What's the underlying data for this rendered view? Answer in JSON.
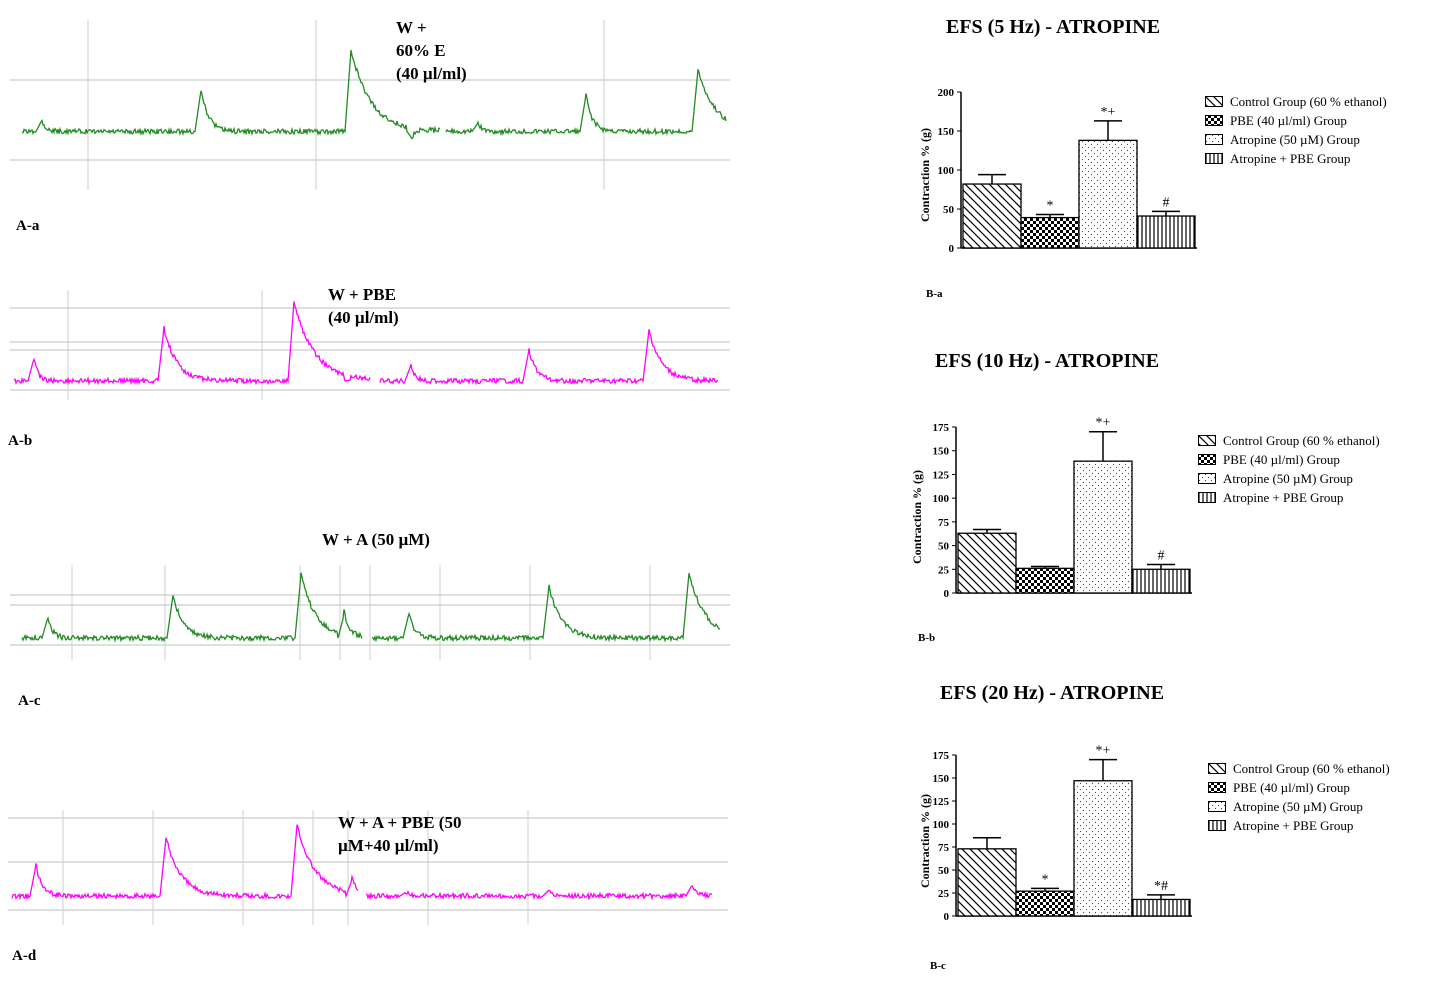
{
  "traces": [
    {
      "label": "A-a",
      "title_lines": [
        "W +",
        "60% E",
        "(40 µl/ml)"
      ],
      "color": "#228B22"
    },
    {
      "label": "A-b",
      "title_lines": [
        "W + PBE",
        "(40 µl/ml)"
      ],
      "color": "#FF00FF"
    },
    {
      "label": "A-c",
      "title_lines": [
        "W + A (50 µM)"
      ],
      "color": "#228B22"
    },
    {
      "label": "A-d",
      "title_lines": [
        "W + A + PBE (50",
        "µM+40 µl/ml)"
      ],
      "color": "#FF00FF"
    }
  ],
  "chart_data": [
    {
      "type": "bar",
      "panel_label": "B-a",
      "title": "EFS (5 Hz) - ATROPINE",
      "ylabel": "Contraction % (g)",
      "ylim": [
        0,
        200
      ],
      "yticks": [
        "0",
        "50",
        "100",
        "150",
        "200"
      ],
      "categories": [
        "Control Group (60 % ethanol)",
        "PBE (40 µl/ml) Group",
        "Atropine (50 µM) Group",
        "Atropine + PBE Group"
      ],
      "values": [
        82,
        39,
        138,
        41
      ],
      "errors": [
        12,
        4,
        25,
        6
      ],
      "annotations": [
        "",
        "*",
        "*+",
        "#"
      ]
    },
    {
      "type": "bar",
      "panel_label": "B-b",
      "title": "EFS (10 Hz) - ATROPINE",
      "ylabel": "Contraction % (g)",
      "ylim": [
        0,
        175
      ],
      "yticks": [
        "0",
        "25",
        "50",
        "75",
        "100",
        "125",
        "150",
        "175"
      ],
      "categories": [
        "Control Group (60 % ethanol)",
        "PBE (40 µl/ml) Group",
        "Atropine (50 µM) Group",
        "Atropine + PBE Group"
      ],
      "values": [
        63,
        26,
        139,
        25
      ],
      "errors": [
        4,
        2,
        31,
        5
      ],
      "annotations": [
        "",
        "",
        "*+",
        "#"
      ]
    },
    {
      "type": "bar",
      "panel_label": "B-c",
      "title": "EFS (20 Hz) - ATROPINE",
      "ylabel": "Contraction % (g)",
      "ylim": [
        0,
        175
      ],
      "yticks": [
        "0",
        "25",
        "50",
        "75",
        "100",
        "125",
        "150",
        "175"
      ],
      "categories": [
        "Control Group (60 % ethanol)",
        "PBE (40 µl/ml) Group",
        "Atropine (50 µM) Group",
        "Atropine + PBE Group"
      ],
      "values": [
        73,
        27,
        147,
        18
      ],
      "errors": [
        12,
        3,
        23,
        5
      ],
      "annotations": [
        "",
        "*",
        "*+",
        "*#"
      ]
    }
  ]
}
